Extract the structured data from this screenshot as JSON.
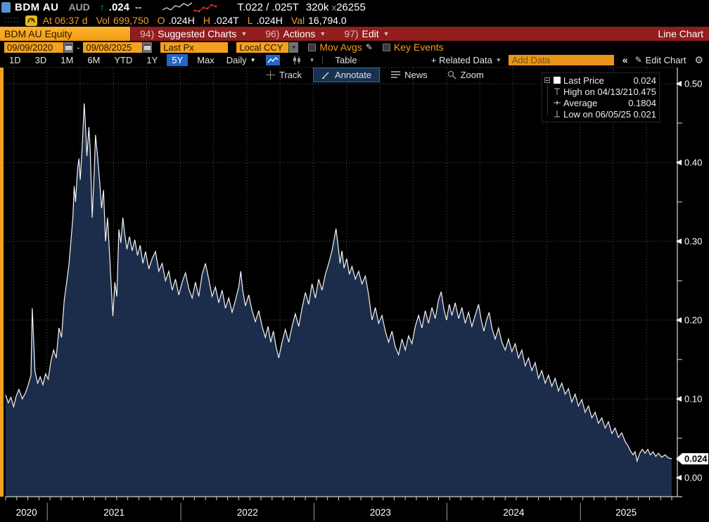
{
  "header": {
    "ticker": "BDM AU",
    "currency": "AUD",
    "arrow": "↑",
    "price": ".024",
    "change": "--",
    "bid_ask": "T.022 / .025T",
    "size_left": "320k",
    "size_x": "x",
    "size_right": "26255",
    "sparkline": {
      "white": [
        [
          0,
          12
        ],
        [
          6,
          9
        ],
        [
          12,
          12
        ],
        [
          18,
          6
        ],
        [
          24,
          8
        ],
        [
          30,
          3
        ],
        [
          36,
          6
        ],
        [
          42,
          2
        ]
      ],
      "red": [
        [
          46,
          13
        ],
        [
          52,
          14
        ],
        [
          58,
          9
        ],
        [
          64,
          10
        ],
        [
          70,
          5
        ],
        [
          76,
          7
        ]
      ]
    },
    "status": {
      "time": "At 06:37 d",
      "vol_label": "Vol",
      "vol_value": "699,750",
      "open_label": "O",
      "open_value": ".024H",
      "high_label": "H",
      "high_value": ".024T",
      "low_label": "L",
      "low_value": ".024H",
      "val_label": "Val",
      "val_value": "16,794.0"
    }
  },
  "menubar": {
    "security": "BDM AU Equity",
    "items": [
      {
        "num": "94)",
        "label": "Suggested Charts"
      },
      {
        "num": "96)",
        "label": "Actions"
      },
      {
        "num": "97)",
        "label": "Edit"
      }
    ],
    "mode": "Line Chart"
  },
  "controls": {
    "date_from": "09/09/2020",
    "dash": "-",
    "date_to": "09/08/2025",
    "field": "Last Px",
    "ccy": "Local CCY",
    "mov_avgs": "Mov Avgs",
    "key_events": "Key Events"
  },
  "periodbar": {
    "ranges": [
      "1D",
      "3D",
      "1M",
      "6M",
      "YTD",
      "1Y",
      "5Y",
      "Max"
    ],
    "active_range": "5Y",
    "frequency": "Daily",
    "table_label": "Table",
    "related_label": "+ Related Data",
    "add_data_placeholder": "Add Data",
    "collapse": "«",
    "edit_chart_label": "Edit Chart"
  },
  "chart_toolbar": {
    "buttons": [
      "Track",
      "Annotate",
      "News",
      "Zoom"
    ],
    "active": "Annotate"
  },
  "legend": {
    "rows": [
      {
        "icon": "last-price-swatch",
        "label": "Last Price",
        "value": "0.024"
      },
      {
        "icon": "high-marker-icon",
        "label": "High on 04/13/21",
        "value": "0.475"
      },
      {
        "icon": "average-marker-icon",
        "label": "Average",
        "value": "0.1804"
      },
      {
        "icon": "low-marker-icon",
        "label": "Low on 06/05/25",
        "value": "0.021"
      }
    ]
  },
  "colors": {
    "amber": "#f3a120",
    "terminal_red": "#911d1d",
    "highlight_blue": "#2465c8",
    "area_fill": "#1c2d4b",
    "line": "#f5f5f5",
    "grid": "#5c5c66",
    "orange_text": "#f89c1c",
    "up_green": "#00d24b"
  },
  "chart_data": {
    "type": "area",
    "title": "BDM AU Equity - Last Price (5Y Daily)",
    "x_range": [
      "09/09/2020",
      "09/08/2025"
    ],
    "ylim": [
      0,
      0.52
    ],
    "y_ticks": [
      0.0,
      0.1,
      0.2,
      0.3,
      0.4,
      0.5
    ],
    "y_minor_ticks": [
      0.05,
      0.15,
      0.25,
      0.35,
      0.45
    ],
    "last_price": 0.024,
    "last_price_label": "0.024",
    "high": {
      "date": "04/13/21",
      "value": 0.475
    },
    "low": {
      "date": "06/05/25",
      "value": 0.021
    },
    "average": 0.1804,
    "grid": "dotted",
    "legend_position": "top-right",
    "years": [
      {
        "label": "2020",
        "start": 0.0,
        "end": 0.0625
      },
      {
        "label": "2021",
        "start": 0.0625,
        "end": 0.263
      },
      {
        "label": "2022",
        "start": 0.263,
        "end": 0.463
      },
      {
        "label": "2023",
        "start": 0.463,
        "end": 0.6625
      },
      {
        "label": "2024",
        "start": 0.6625,
        "end": 0.863
      },
      {
        "label": "2025",
        "start": 0.863,
        "end": 1.0
      }
    ],
    "quarter_grid_start": 0.012,
    "quarter_grid_step": 0.05,
    "series": [
      {
        "name": "Last Price",
        "points": [
          [
            0.0,
            0.105
          ],
          [
            0.004,
            0.095
          ],
          [
            0.008,
            0.102
          ],
          [
            0.012,
            0.09
          ],
          [
            0.016,
            0.104
          ],
          [
            0.02,
            0.112
          ],
          [
            0.025,
            0.1
          ],
          [
            0.03,
            0.108
          ],
          [
            0.034,
            0.118
          ],
          [
            0.038,
            0.13
          ],
          [
            0.04,
            0.215
          ],
          [
            0.042,
            0.175
          ],
          [
            0.044,
            0.135
          ],
          [
            0.048,
            0.12
          ],
          [
            0.052,
            0.128
          ],
          [
            0.056,
            0.118
          ],
          [
            0.06,
            0.132
          ],
          [
            0.064,
            0.125
          ],
          [
            0.068,
            0.148
          ],
          [
            0.072,
            0.162
          ],
          [
            0.076,
            0.152
          ],
          [
            0.08,
            0.19
          ],
          [
            0.084,
            0.178
          ],
          [
            0.088,
            0.225
          ],
          [
            0.092,
            0.25
          ],
          [
            0.095,
            0.27
          ],
          [
            0.098,
            0.3
          ],
          [
            0.101,
            0.33
          ],
          [
            0.103,
            0.37
          ],
          [
            0.105,
            0.35
          ],
          [
            0.108,
            0.392
          ],
          [
            0.11,
            0.405
          ],
          [
            0.112,
            0.378
          ],
          [
            0.115,
            0.42
          ],
          [
            0.118,
            0.475
          ],
          [
            0.12,
            0.445
          ],
          [
            0.122,
            0.408
          ],
          [
            0.125,
            0.445
          ],
          [
            0.127,
            0.415
          ],
          [
            0.13,
            0.33
          ],
          [
            0.133,
            0.388
          ],
          [
            0.135,
            0.435
          ],
          [
            0.138,
            0.408
          ],
          [
            0.141,
            0.378
          ],
          [
            0.144,
            0.342
          ],
          [
            0.147,
            0.365
          ],
          [
            0.15,
            0.3
          ],
          [
            0.153,
            0.33
          ],
          [
            0.156,
            0.285
          ],
          [
            0.159,
            0.235
          ],
          [
            0.161,
            0.205
          ],
          [
            0.164,
            0.248
          ],
          [
            0.167,
            0.23
          ],
          [
            0.17,
            0.315
          ],
          [
            0.173,
            0.298
          ],
          [
            0.176,
            0.33
          ],
          [
            0.179,
            0.308
          ],
          [
            0.182,
            0.29
          ],
          [
            0.186,
            0.306
          ],
          [
            0.19,
            0.288
          ],
          [
            0.194,
            0.302
          ],
          [
            0.198,
            0.282
          ],
          [
            0.202,
            0.295
          ],
          [
            0.206,
            0.272
          ],
          [
            0.21,
            0.287
          ],
          [
            0.215,
            0.265
          ],
          [
            0.22,
            0.278
          ],
          [
            0.225,
            0.287
          ],
          [
            0.23,
            0.262
          ],
          [
            0.235,
            0.272
          ],
          [
            0.24,
            0.25
          ],
          [
            0.245,
            0.262
          ],
          [
            0.25,
            0.238
          ],
          [
            0.255,
            0.252
          ],
          [
            0.26,
            0.232
          ],
          [
            0.265,
            0.248
          ],
          [
            0.27,
            0.26
          ],
          [
            0.275,
            0.24
          ],
          [
            0.28,
            0.228
          ],
          [
            0.285,
            0.248
          ],
          [
            0.29,
            0.23
          ],
          [
            0.295,
            0.258
          ],
          [
            0.3,
            0.272
          ],
          [
            0.305,
            0.252
          ],
          [
            0.31,
            0.23
          ],
          [
            0.315,
            0.242
          ],
          [
            0.32,
            0.222
          ],
          [
            0.325,
            0.238
          ],
          [
            0.33,
            0.215
          ],
          [
            0.335,
            0.228
          ],
          [
            0.34,
            0.21
          ],
          [
            0.345,
            0.225
          ],
          [
            0.35,
            0.242
          ],
          [
            0.353,
            0.262
          ],
          [
            0.356,
            0.238
          ],
          [
            0.36,
            0.218
          ],
          [
            0.365,
            0.232
          ],
          [
            0.37,
            0.212
          ],
          [
            0.375,
            0.198
          ],
          [
            0.38,
            0.212
          ],
          [
            0.385,
            0.192
          ],
          [
            0.39,
            0.178
          ],
          [
            0.394,
            0.192
          ],
          [
            0.398,
            0.172
          ],
          [
            0.402,
            0.186
          ],
          [
            0.406,
            0.166
          ],
          [
            0.41,
            0.152
          ],
          [
            0.415,
            0.172
          ],
          [
            0.42,
            0.188
          ],
          [
            0.425,
            0.172
          ],
          [
            0.43,
            0.192
          ],
          [
            0.435,
            0.208
          ],
          [
            0.44,
            0.192
          ],
          [
            0.445,
            0.215
          ],
          [
            0.45,
            0.235
          ],
          [
            0.455,
            0.22
          ],
          [
            0.46,
            0.246
          ],
          [
            0.465,
            0.228
          ],
          [
            0.47,
            0.252
          ],
          [
            0.475,
            0.238
          ],
          [
            0.48,
            0.258
          ],
          [
            0.485,
            0.272
          ],
          [
            0.49,
            0.288
          ],
          [
            0.493,
            0.302
          ],
          [
            0.496,
            0.316
          ],
          [
            0.499,
            0.295
          ],
          [
            0.502,
            0.272
          ],
          [
            0.505,
            0.288
          ],
          [
            0.508,
            0.266
          ],
          [
            0.512,
            0.278
          ],
          [
            0.516,
            0.258
          ],
          [
            0.52,
            0.268
          ],
          [
            0.525,
            0.252
          ],
          [
            0.53,
            0.262
          ],
          [
            0.535,
            0.246
          ],
          [
            0.54,
            0.256
          ],
          [
            0.545,
            0.232
          ],
          [
            0.55,
            0.2
          ],
          [
            0.555,
            0.216
          ],
          [
            0.56,
            0.196
          ],
          [
            0.565,
            0.206
          ],
          [
            0.57,
            0.186
          ],
          [
            0.575,
            0.172
          ],
          [
            0.58,
            0.186
          ],
          [
            0.585,
            0.166
          ],
          [
            0.59,
            0.156
          ],
          [
            0.595,
            0.176
          ],
          [
            0.6,
            0.162
          ],
          [
            0.605,
            0.18
          ],
          [
            0.61,
            0.17
          ],
          [
            0.615,
            0.192
          ],
          [
            0.62,
            0.206
          ],
          [
            0.625,
            0.19
          ],
          [
            0.63,
            0.212
          ],
          [
            0.635,
            0.196
          ],
          [
            0.64,
            0.216
          ],
          [
            0.645,
            0.202
          ],
          [
            0.65,
            0.226
          ],
          [
            0.654,
            0.236
          ],
          [
            0.658,
            0.214
          ],
          [
            0.662,
            0.2
          ],
          [
            0.666,
            0.22
          ],
          [
            0.67,
            0.206
          ],
          [
            0.675,
            0.222
          ],
          [
            0.68,
            0.202
          ],
          [
            0.685,
            0.216
          ],
          [
            0.69,
            0.196
          ],
          [
            0.695,
            0.21
          ],
          [
            0.7,
            0.192
          ],
          [
            0.705,
            0.206
          ],
          [
            0.71,
            0.22
          ],
          [
            0.714,
            0.2
          ],
          [
            0.718,
            0.186
          ],
          [
            0.722,
            0.2
          ],
          [
            0.726,
            0.21
          ],
          [
            0.73,
            0.19
          ],
          [
            0.735,
            0.176
          ],
          [
            0.74,
            0.19
          ],
          [
            0.745,
            0.172
          ],
          [
            0.75,
            0.162
          ],
          [
            0.755,
            0.176
          ],
          [
            0.76,
            0.16
          ],
          [
            0.765,
            0.17
          ],
          [
            0.77,
            0.152
          ],
          [
            0.775,
            0.162
          ],
          [
            0.78,
            0.142
          ],
          [
            0.785,
            0.152
          ],
          [
            0.79,
            0.136
          ],
          [
            0.795,
            0.146
          ],
          [
            0.8,
            0.126
          ],
          [
            0.805,
            0.136
          ],
          [
            0.81,
            0.12
          ],
          [
            0.815,
            0.13
          ],
          [
            0.82,
            0.116
          ],
          [
            0.825,
            0.126
          ],
          [
            0.83,
            0.11
          ],
          [
            0.835,
            0.12
          ],
          [
            0.84,
            0.106
          ],
          [
            0.845,
            0.113
          ],
          [
            0.85,
            0.096
          ],
          [
            0.855,
            0.106
          ],
          [
            0.86,
            0.091
          ],
          [
            0.865,
            0.099
          ],
          [
            0.87,
            0.083
          ],
          [
            0.875,
            0.091
          ],
          [
            0.88,
            0.076
          ],
          [
            0.885,
            0.083
          ],
          [
            0.89,
            0.069
          ],
          [
            0.895,
            0.076
          ],
          [
            0.9,
            0.063
          ],
          [
            0.905,
            0.071
          ],
          [
            0.91,
            0.056
          ],
          [
            0.915,
            0.063
          ],
          [
            0.92,
            0.051
          ],
          [
            0.925,
            0.057
          ],
          [
            0.93,
            0.046
          ],
          [
            0.934,
            0.041
          ],
          [
            0.938,
            0.034
          ],
          [
            0.942,
            0.029
          ],
          [
            0.945,
            0.033
          ],
          [
            0.948,
            0.021
          ],
          [
            0.952,
            0.031
          ],
          [
            0.956,
            0.036
          ],
          [
            0.96,
            0.031
          ],
          [
            0.964,
            0.036
          ],
          [
            0.968,
            0.029
          ],
          [
            0.972,
            0.033
          ],
          [
            0.976,
            0.027
          ],
          [
            0.98,
            0.031
          ],
          [
            0.985,
            0.026
          ],
          [
            0.99,
            0.029
          ],
          [
            0.995,
            0.025
          ],
          [
            1.0,
            0.024
          ]
        ]
      }
    ]
  }
}
